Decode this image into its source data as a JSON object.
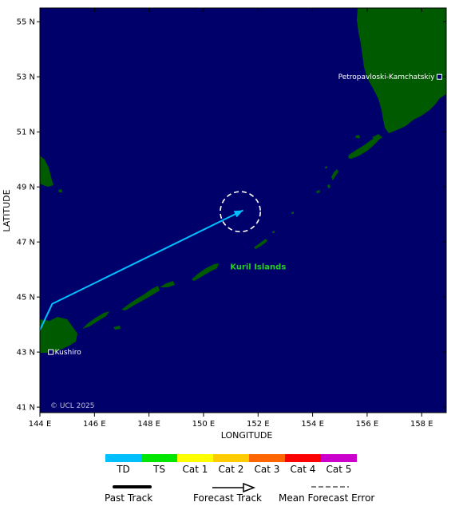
{
  "map": {
    "lon_range": [
      144,
      158.9
    ],
    "lat_range": [
      40.8,
      55.5
    ],
    "ocean_color": "#00006b",
    "land_color": "#005a00",
    "lon_ticks": [
      144,
      146,
      148,
      150,
      152,
      154,
      156,
      158
    ],
    "lat_ticks": [
      41,
      43,
      45,
      47,
      49,
      51,
      53,
      55
    ],
    "lon_tick_labels": [
      "144 E",
      "146 E",
      "148 E",
      "150 E",
      "152 E",
      "154 E",
      "156 E",
      "158 E"
    ],
    "lat_tick_labels": [
      "41 N",
      "43 N",
      "45 N",
      "47 N",
      "49 N",
      "51 N",
      "53 N",
      "55 N"
    ],
    "xlabel": "LONGITUDE",
    "ylabel": "LATITUDE",
    "copyright": "© UCL 2025"
  },
  "places": [
    {
      "name": "Petropavloski-Kamchatskiy",
      "lon": 158.65,
      "lat": 53.0
    },
    {
      "name": "Kushiro",
      "lon": 144.4,
      "lat": 43.0
    }
  ],
  "region_label": {
    "text": "Kuril Islands",
    "lon": 152.0,
    "lat": 46.0,
    "color": "#22cc22"
  },
  "track": {
    "color": "#00bfff",
    "points": [
      {
        "lon": 144.0,
        "lat": 43.8
      },
      {
        "lon": 144.45,
        "lat": 44.75
      },
      {
        "lon": 151.45,
        "lat": 48.15
      }
    ],
    "forecast_error_center": {
      "lon": 151.35,
      "lat": 48.1
    },
    "forecast_error_radius_deg": 0.7
  },
  "legend": {
    "categories": [
      {
        "label": "TD",
        "color": "#00bfff"
      },
      {
        "label": "TS",
        "color": "#00e600"
      },
      {
        "label": "Cat 1",
        "color": "#ffff00"
      },
      {
        "label": "Cat 2",
        "color": "#ffcc00"
      },
      {
        "label": "Cat 3",
        "color": "#ff6600"
      },
      {
        "label": "Cat 4",
        "color": "#ff0000"
      },
      {
        "label": "Cat 5",
        "color": "#cc00cc"
      }
    ],
    "past_track_label": "Past Track",
    "forecast_track_label": "Forecast Track",
    "mean_error_label": "Mean Forecast Error"
  }
}
